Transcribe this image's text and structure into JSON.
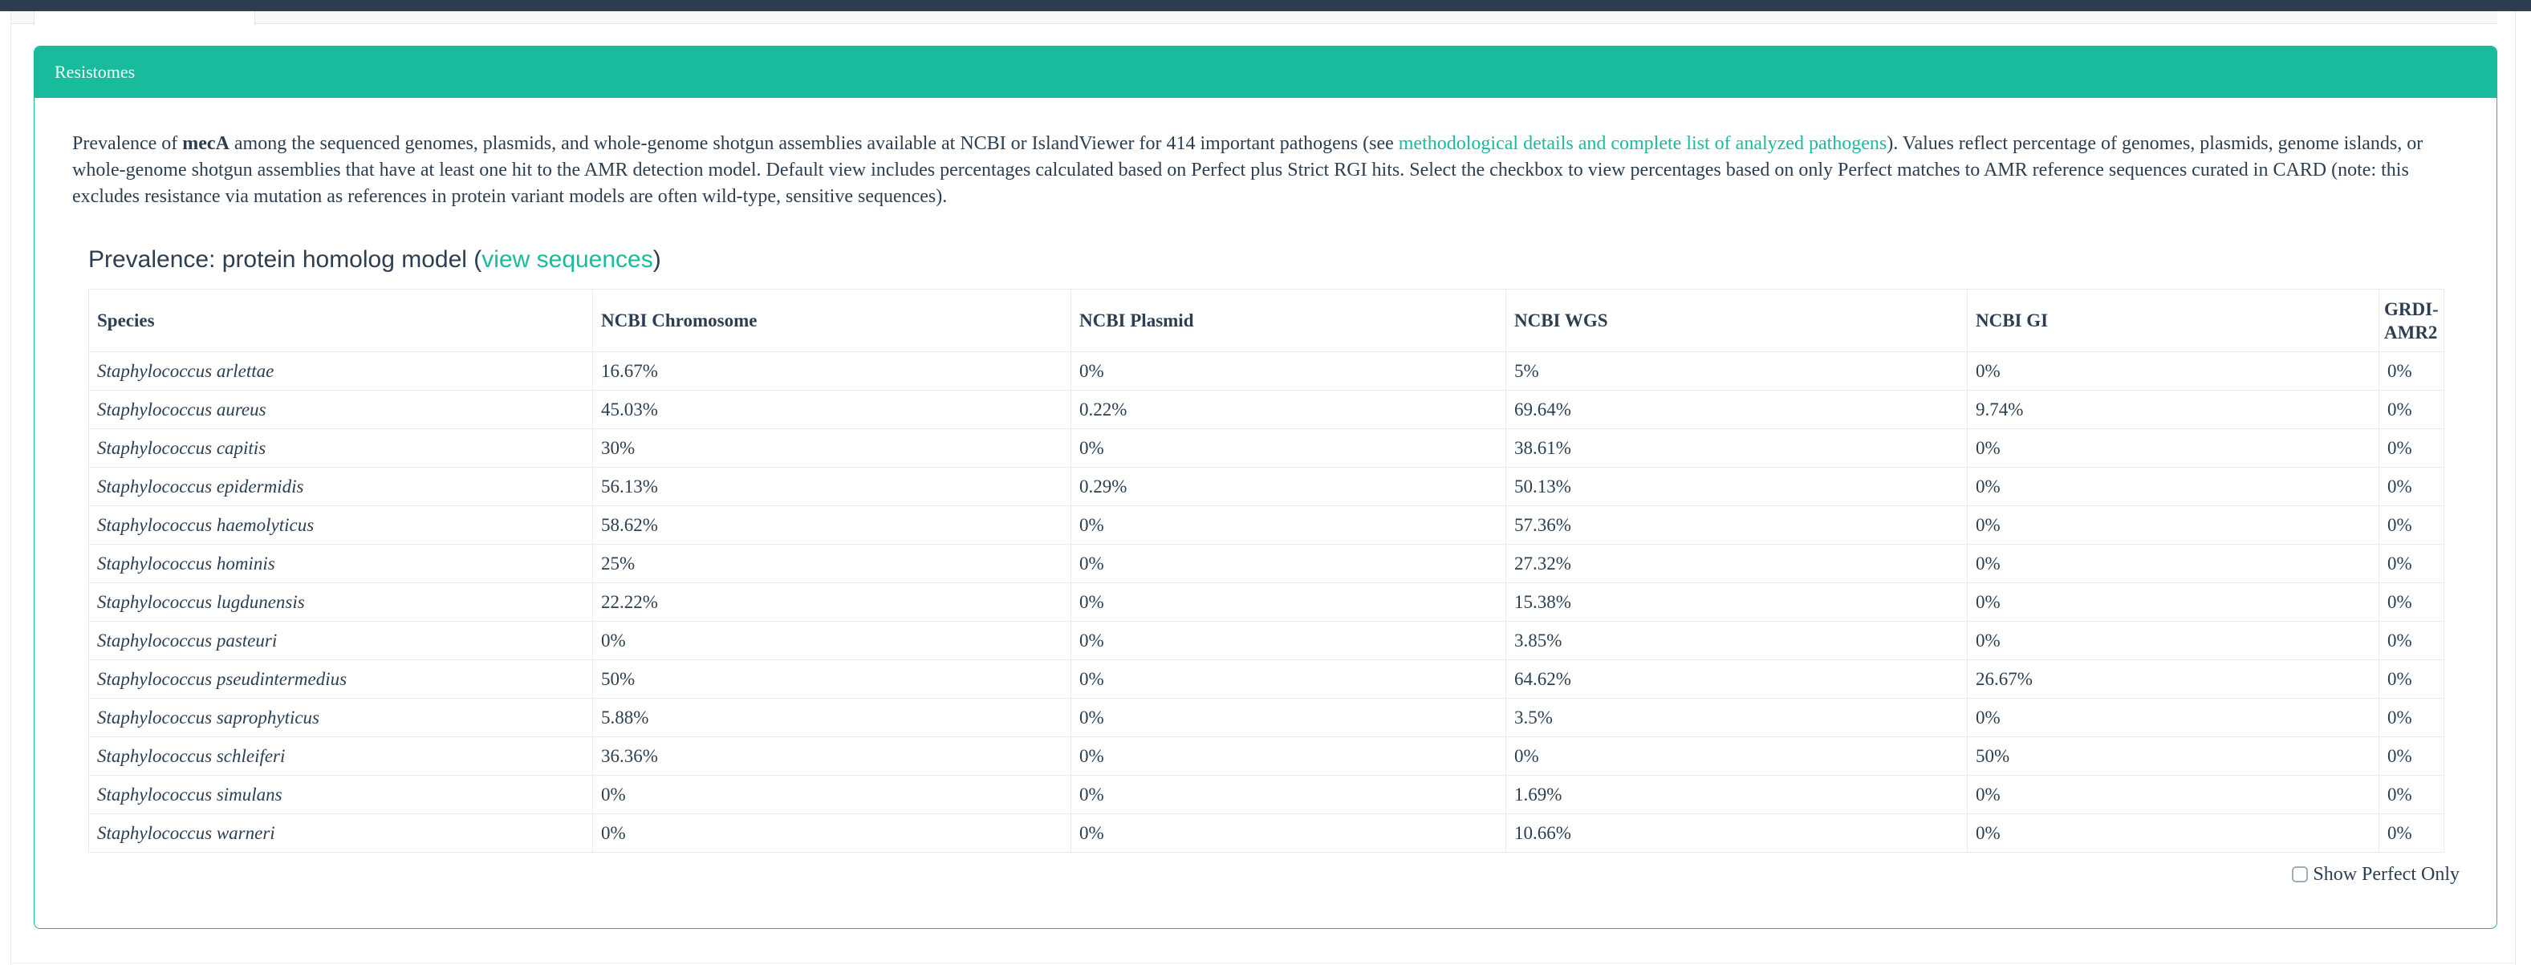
{
  "colors": {
    "navbar": "#2c3e50",
    "accent": "#18bc9c",
    "text": "#2c3e50",
    "table_border": "#e9e9e9"
  },
  "panel": {
    "title": "Resistomes",
    "description": {
      "segments": [
        {
          "type": "text",
          "text": "Prevalence of "
        },
        {
          "type": "bold",
          "text": "mecA"
        },
        {
          "type": "text",
          "text": " among the sequenced genomes, plasmids, and whole-genome shotgun assemblies available at NCBI or IslandViewer for 414 important pathogens (see "
        },
        {
          "type": "link",
          "name": "methodology-link",
          "text": "methodological details and complete list of analyzed pathogens"
        },
        {
          "type": "text",
          "text": "). Values reflect percentage of genomes, plasmids, genome islands, or whole-genome shotgun assemblies that have at least one hit to the AMR detection model. Default view includes percentages calculated based on Perfect plus Strict RGI hits. Select the checkbox to view percentages based on only Perfect matches to AMR reference sequences curated in CARD (note: this excludes resistance via mutation as references in protein variant models are often wild-type, sensitive sequences)."
        }
      ]
    },
    "section": {
      "heading_prefix": "Prevalence: protein homolog model (",
      "view_sequences_label": "view sequences",
      "heading_suffix": ")"
    },
    "table": {
      "columns": [
        "Species",
        "NCBI Chromosome",
        "NCBI Plasmid",
        "NCBI WGS",
        "NCBI GI",
        "GRDI-AMR2"
      ],
      "rows": [
        {
          "species": "Staphylococcus arlettae",
          "values": [
            "16.67%",
            "0%",
            "5%",
            "0%",
            "0%"
          ]
        },
        {
          "species": "Staphylococcus aureus",
          "values": [
            "45.03%",
            "0.22%",
            "69.64%",
            "9.74%",
            "0%"
          ]
        },
        {
          "species": "Staphylococcus capitis",
          "values": [
            "30%",
            "0%",
            "38.61%",
            "0%",
            "0%"
          ]
        },
        {
          "species": "Staphylococcus epidermidis",
          "values": [
            "56.13%",
            "0.29%",
            "50.13%",
            "0%",
            "0%"
          ]
        },
        {
          "species": "Staphylococcus haemolyticus",
          "values": [
            "58.62%",
            "0%",
            "57.36%",
            "0%",
            "0%"
          ]
        },
        {
          "species": "Staphylococcus hominis",
          "values": [
            "25%",
            "0%",
            "27.32%",
            "0%",
            "0%"
          ]
        },
        {
          "species": "Staphylococcus lugdunensis",
          "values": [
            "22.22%",
            "0%",
            "15.38%",
            "0%",
            "0%"
          ]
        },
        {
          "species": "Staphylococcus pasteuri",
          "values": [
            "0%",
            "0%",
            "3.85%",
            "0%",
            "0%"
          ]
        },
        {
          "species": "Staphylococcus pseudintermedius",
          "values": [
            "50%",
            "0%",
            "64.62%",
            "26.67%",
            "0%"
          ]
        },
        {
          "species": "Staphylococcus saprophyticus",
          "values": [
            "5.88%",
            "0%",
            "3.5%",
            "0%",
            "0%"
          ]
        },
        {
          "species": "Staphylococcus schleiferi",
          "values": [
            "36.36%",
            "0%",
            "0%",
            "50%",
            "0%"
          ]
        },
        {
          "species": "Staphylococcus simulans",
          "values": [
            "0%",
            "0%",
            "1.69%",
            "0%",
            "0%"
          ]
        },
        {
          "species": "Staphylococcus warneri",
          "values": [
            "0%",
            "0%",
            "10.66%",
            "0%",
            "0%"
          ]
        }
      ]
    },
    "perfect_only_label": "Show Perfect Only"
  }
}
